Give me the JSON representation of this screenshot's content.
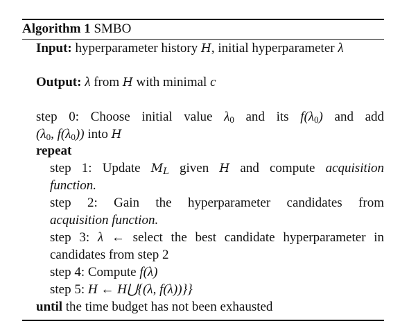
{
  "algorithm": {
    "number_label": "Algorithm 1",
    "name": "SMBO"
  },
  "input": {
    "label": "Input:",
    "text_1": "hyperparameter history",
    "H": "H",
    "text_2": ", initial hyperparameter",
    "lambda": "λ"
  },
  "output": {
    "label": "Output:",
    "lambda": "λ",
    "text_1": "from",
    "H": "H",
    "text_2": "with minimal",
    "c": "c"
  },
  "step0": {
    "line1_prefix": "step 0: Choose initial value",
    "lambda0": "λ",
    "sub0": "0",
    "mid": "and its",
    "f_lambda0": "f(λ",
    "f_sub": "0",
    "f_close": ")",
    "suffix": "and add",
    "line2_pair": "(λ",
    "line2_sub": "0",
    "line2_pair_mid": ", f(λ",
    "line2_sub2": "0",
    "line2_pair_end": "))",
    "line2_into": "into",
    "line2_H": "H"
  },
  "repeat_label": "repeat",
  "step1": {
    "prefix": "step 1: Update",
    "M": "M",
    "M_sub": "L",
    "given": "given",
    "H": "H",
    "suffix": "and compute",
    "acq1": "acquisition",
    "acq2": "function."
  },
  "step2": {
    "text": "step 2: Gain the hyperparameter candidates from",
    "acq": "acquisition function."
  },
  "step3": {
    "prefix": "step 3:",
    "lambda": "λ",
    "arrow": "←",
    "text": "select the best candidate hyperparameter in",
    "line2": "candidates from step 2"
  },
  "step4": {
    "prefix": "step 4: Compute",
    "expr": "f(λ)"
  },
  "step5": {
    "prefix": "step 5:",
    "expr": "H ← H⋃{(λ, f(λ))}}"
  },
  "until": {
    "label": "until",
    "text": "the time budget has not been exhausted"
  }
}
